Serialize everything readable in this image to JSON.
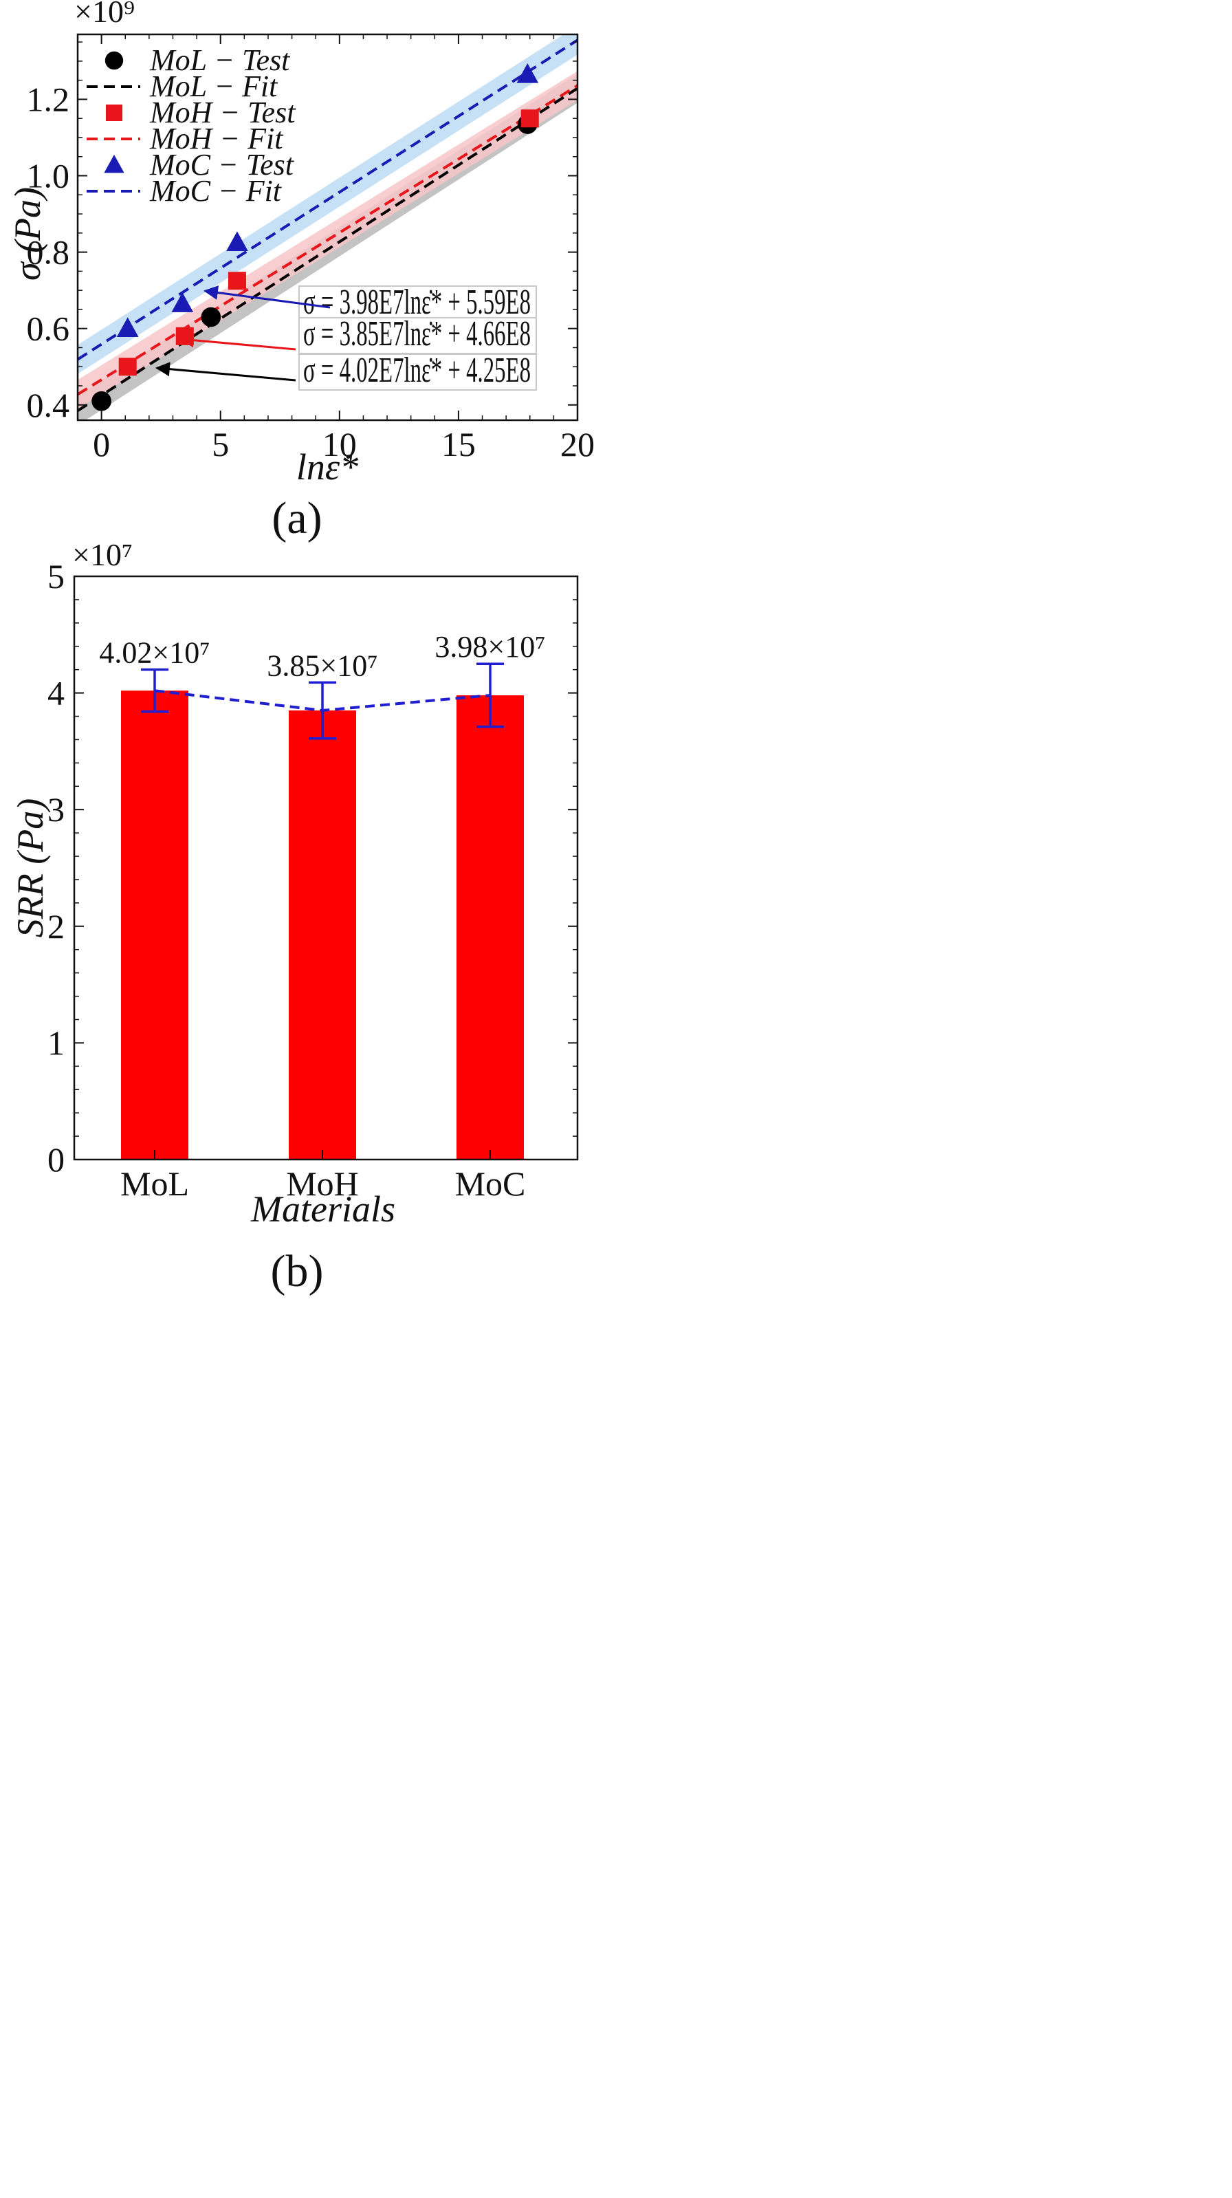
{
  "chart_data": [
    {
      "type": "scatter",
      "panel_label": "(a)",
      "multiplier": "×10⁹",
      "xlabel": "lnε̇*",
      "ylabel": "σ (Pa)",
      "xlim": [
        -1,
        20
      ],
      "ylim": [
        0.36,
        1.37
      ],
      "x_ticks": [
        0,
        5,
        10,
        15,
        20
      ],
      "y_ticks": [
        0.4,
        0.6,
        0.8,
        1.0,
        1.2
      ],
      "y_tick_labels": [
        "0.4",
        "0.6",
        "0.8",
        "1.0",
        "1.2"
      ],
      "legend_position": "top-left",
      "series": [
        {
          "name": "MoL",
          "test_label": "MoL − Test",
          "fit_label": "MoL − Fit",
          "color": "#000000",
          "band_color": "#b9b9b9",
          "marker": "circle",
          "x": [
            0.0,
            4.6,
            17.9
          ],
          "y": [
            0.41,
            0.63,
            1.135
          ],
          "slope": 0.0402,
          "intercept": 0.425,
          "equation": "σ = 4.02E7lnε̇* + 4.25E8"
        },
        {
          "name": "MoH",
          "test_label": "MoH − Test",
          "fit_label": "MoH − Fit",
          "color": "#e8151b",
          "band_color": "#f7c6c8",
          "marker": "square",
          "x": [
            1.1,
            3.5,
            5.7,
            18.0
          ],
          "y": [
            0.5,
            0.58,
            0.725,
            1.15
          ],
          "slope": 0.0385,
          "intercept": 0.466,
          "equation": "σ = 3.85E7lnε̇* + 4.66E8"
        },
        {
          "name": "MoC",
          "test_label": "MoC − Test",
          "fit_label": "MoC − Fit",
          "color": "#1a1ab4",
          "band_color": "#bcdcf5",
          "marker": "triangle",
          "x": [
            1.1,
            3.4,
            5.7,
            17.9
          ],
          "y": [
            0.6,
            0.665,
            0.825,
            1.265
          ],
          "slope": 0.0398,
          "intercept": 0.559,
          "equation": "σ = 3.98E7lnε̇* + 5.59E8"
        }
      ],
      "annotations": [
        {
          "series": "MoC",
          "arrow_target": [
            4.3,
            0.718
          ]
        },
        {
          "series": "MoH",
          "arrow_target": [
            3.4,
            0.578
          ]
        },
        {
          "series": "MoL",
          "arrow_target": [
            2.3,
            0.51
          ]
        }
      ]
    },
    {
      "type": "bar",
      "panel_label": "(b)",
      "multiplier": "×10⁷",
      "xlabel": "Materials",
      "ylabel": "SRR (Pa)",
      "categories": [
        "MoL",
        "MoH",
        "MoC"
      ],
      "values": [
        4.02,
        3.85,
        3.98
      ],
      "error_low": [
        3.84,
        3.61,
        3.71
      ],
      "error_high": [
        4.2,
        4.09,
        4.25
      ],
      "data_labels": [
        "4.02×10⁷",
        "3.85×10⁷",
        "3.98×10⁷"
      ],
      "ylim": [
        0,
        5
      ],
      "y_ticks": [
        0,
        1,
        2,
        3,
        4,
        5
      ],
      "bar_color": "#ff0000",
      "line_color": "#1f1fd1"
    }
  ]
}
